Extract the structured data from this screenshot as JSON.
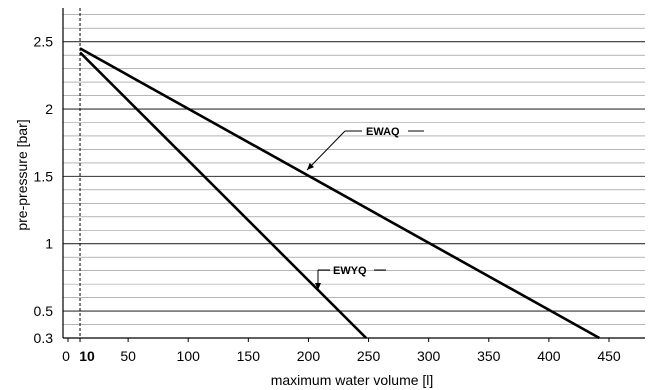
{
  "chart_data": {
    "type": "line",
    "title": "",
    "xlabel": "maximum water volume [l]",
    "ylabel": "pre-pressure [bar]",
    "xlim": [
      0,
      475
    ],
    "ylim": [
      0.3,
      2.75
    ],
    "x_ticks": [
      0,
      10,
      50,
      100,
      150,
      200,
      250,
      300,
      350,
      400,
      450
    ],
    "x_tick_labels": [
      "0",
      "10",
      "50",
      "100",
      "150",
      "200",
      "250",
      "300",
      "350",
      "400",
      "450"
    ],
    "y_ticks": [
      0.3,
      0.5,
      1,
      1.5,
      2,
      2.5
    ],
    "y_tick_labels": [
      "0.3",
      "0.5",
      "1",
      "1.5",
      "2",
      "2.5"
    ],
    "y_minor_step": 0.1,
    "reference_line_x": 10,
    "grid": true,
    "series": [
      {
        "name": "EWAQ",
        "x": [
          10,
          442
        ],
        "y": [
          2.45,
          0.3
        ]
      },
      {
        "name": "EWYQ",
        "x": [
          10,
          248
        ],
        "y": [
          2.42,
          0.3
        ]
      }
    ]
  }
}
